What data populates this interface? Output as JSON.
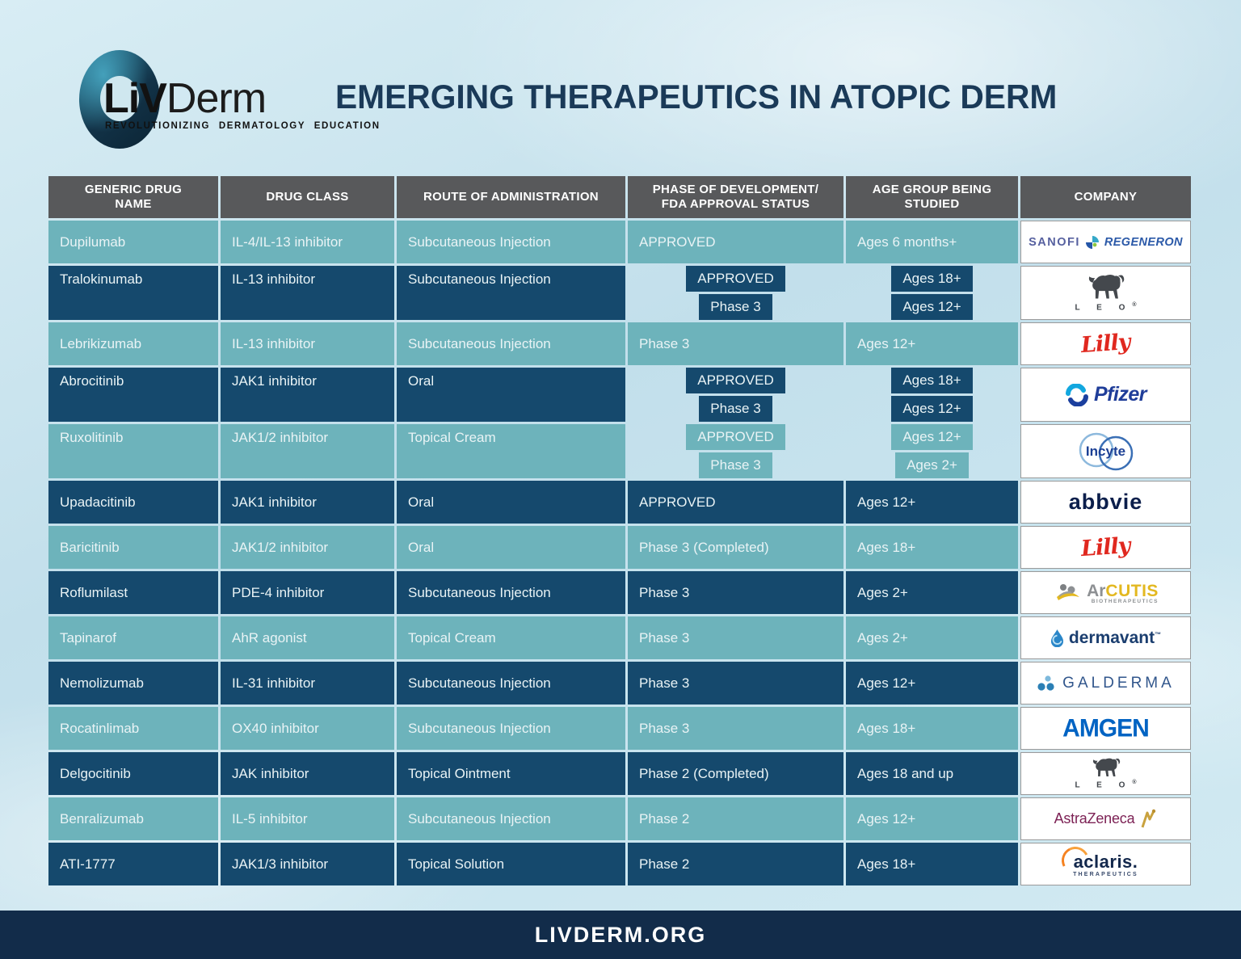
{
  "header": {
    "logo": {
      "liv": "LiV",
      "derm": "Derm",
      "tagline": "REVOLUTIONIZING DERMATOLOGY EDUCATION"
    },
    "title": "EMERGING THERAPEUTICS IN ATOPIC DERM"
  },
  "table": {
    "columns": [
      "GENERIC DRUG\nNAME",
      "DRUG CLASS",
      "ROUTE OF ADMINISTRATION",
      "PHASE OF DEVELOPMENT/\nFDA APPROVAL STATUS",
      "AGE GROUP BEING\nSTUDIED",
      "COMPANY"
    ],
    "rows": [
      {
        "drug": "Dupilumab",
        "drug_class": "IL-4/IL-13 inhibitor",
        "route": "Subcutaneous Injection",
        "entries": [
          {
            "phase": "APPROVED",
            "age": "Ages 6 months+"
          }
        ],
        "company": "sanofi_regeneron",
        "theme": "teal"
      },
      {
        "drug": "Tralokinumab",
        "drug_class": "IL-13 inhibitor",
        "route": "Subcutaneous Injection",
        "entries": [
          {
            "phase": "APPROVED",
            "age": "Ages 18+"
          },
          {
            "phase": "Phase 3",
            "age": "Ages 12+"
          }
        ],
        "company": "leo",
        "theme": "navy"
      },
      {
        "drug": "Lebrikizumab",
        "drug_class": "IL-13 inhibitor",
        "route": "Subcutaneous Injection",
        "entries": [
          {
            "phase": "Phase 3",
            "age": "Ages 12+"
          }
        ],
        "company": "lilly",
        "theme": "teal"
      },
      {
        "drug": "Abrocitinib",
        "drug_class": "JAK1 inhibitor",
        "route": "Oral",
        "entries": [
          {
            "phase": "APPROVED",
            "age": "Ages 18+"
          },
          {
            "phase": "Phase 3",
            "age": "Ages 12+"
          }
        ],
        "company": "pfizer",
        "theme": "navy"
      },
      {
        "drug": "Ruxolitinib",
        "drug_class": "JAK1/2 inhibitor",
        "route": "Topical Cream",
        "entries": [
          {
            "phase": "APPROVED",
            "age": "Ages 12+"
          },
          {
            "phase": "Phase 3",
            "age": "Ages 2+"
          }
        ],
        "company": "incyte",
        "theme": "teal"
      },
      {
        "drug": "Upadacitinib",
        "drug_class": "JAK1 inhibitor",
        "route": "Oral",
        "entries": [
          {
            "phase": "APPROVED",
            "age": "Ages 12+"
          }
        ],
        "company": "abbvie",
        "theme": "navy"
      },
      {
        "drug": "Baricitinib",
        "drug_class": "JAK1/2 inhibitor",
        "route": "Oral",
        "entries": [
          {
            "phase": "Phase 3 (Completed)",
            "age": "Ages 18+"
          }
        ],
        "company": "lilly",
        "theme": "teal"
      },
      {
        "drug": "Roflumilast",
        "drug_class": "PDE-4 inhibitor",
        "route": "Subcutaneous Injection",
        "entries": [
          {
            "phase": "Phase 3",
            "age": "Ages 2+"
          }
        ],
        "company": "arcutis",
        "theme": "navy"
      },
      {
        "drug": "Tapinarof",
        "drug_class": "AhR agonist",
        "route": "Topical Cream",
        "entries": [
          {
            "phase": "Phase 3",
            "age": "Ages 2+"
          }
        ],
        "company": "dermavant",
        "theme": "teal"
      },
      {
        "drug": "Nemolizumab",
        "drug_class": "IL-31 inhibitor",
        "route": "Subcutaneous Injection",
        "entries": [
          {
            "phase": "Phase 3",
            "age": "Ages 12+"
          }
        ],
        "company": "galderma",
        "theme": "navy"
      },
      {
        "drug": "Rocatinlimab",
        "drug_class": "OX40 inhibitor",
        "route": "Subcutaneous Injection",
        "entries": [
          {
            "phase": "Phase 3",
            "age": "Ages 18+"
          }
        ],
        "company": "amgen",
        "theme": "teal"
      },
      {
        "drug": "Delgocitinib",
        "drug_class": "JAK inhibitor",
        "route": "Topical Ointment",
        "entries": [
          {
            "phase": "Phase 2 (Completed)",
            "age": "Ages 18 and up"
          }
        ],
        "company": "leo",
        "theme": "navy"
      },
      {
        "drug": "Benralizumab",
        "drug_class": "IL-5 inhibitor",
        "route": "Subcutaneous Injection",
        "entries": [
          {
            "phase": "Phase 2",
            "age": "Ages 12+"
          }
        ],
        "company": "astrazeneca",
        "theme": "teal"
      },
      {
        "drug": "ATI-1777",
        "drug_class": "JAK1/3 inhibitor",
        "route": "Topical Solution",
        "entries": [
          {
            "phase": "Phase 2",
            "age": "Ages 18+"
          }
        ],
        "company": "aclaris",
        "theme": "navy"
      }
    ]
  },
  "logos": {
    "sanofi_regeneron": {
      "name": "Sanofi Regeneron",
      "text1": "SANOFI",
      "text2": "REGENERON"
    },
    "leo": {
      "name": "LEO Pharma",
      "text": "L E O",
      "reg": "®"
    },
    "lilly": {
      "name": "Lilly",
      "text": "Lilly"
    },
    "pfizer": {
      "name": "Pfizer",
      "text": "Pfizer"
    },
    "incyte": {
      "name": "Incyte",
      "text": "Incyte"
    },
    "abbvie": {
      "name": "AbbVie",
      "text": "abbvie"
    },
    "arcutis": {
      "name": "Arcutis Biotherapeutics",
      "text1": "Ar",
      "text2": "cutis",
      "sub": "BIOTHERAPEUTICS"
    },
    "dermavant": {
      "name": "Dermavant",
      "text": "dermavant",
      "tm": "™"
    },
    "galderma": {
      "name": "Galderma",
      "text": "GALDERMA"
    },
    "amgen": {
      "name": "Amgen",
      "text": "AMGEN"
    },
    "astrazeneca": {
      "name": "AstraZeneca",
      "text": "AstraZeneca"
    },
    "aclaris": {
      "name": "Aclaris Therapeutics",
      "text": "aclaris.",
      "sub": "THERAPEUTICS"
    }
  },
  "footer": {
    "url": "LIVDERM.ORG"
  },
  "colors": {
    "teal_row": "#6db3bb",
    "navy_row": "#15496d",
    "header_gray": "#58595b",
    "title_navy": "#1a3a58",
    "footer_navy": "#122c4a",
    "background_blue": "#cbe4ef"
  }
}
